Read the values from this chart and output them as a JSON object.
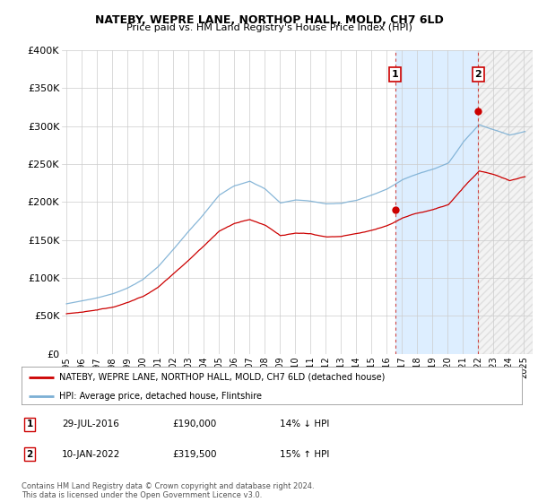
{
  "title": "NATEBY, WEPRE LANE, NORTHOP HALL, MOLD, CH7 6LD",
  "subtitle": "Price paid vs. HM Land Registry's House Price Index (HPI)",
  "legend_line1": "NATEBY, WEPRE LANE, NORTHOP HALL, MOLD, CH7 6LD (detached house)",
  "legend_line2": "HPI: Average price, detached house, Flintshire",
  "marker1_date": "29-JUL-2016",
  "marker1_price": 190000,
  "marker1_label": "14% ↓ HPI",
  "marker1_year": 2016.58,
  "marker2_date": "10-JAN-2022",
  "marker2_price": 319500,
  "marker2_label": "15% ↑ HPI",
  "marker2_year": 2022.03,
  "footer": "Contains HM Land Registry data © Crown copyright and database right 2024.\nThis data is licensed under the Open Government Licence v3.0.",
  "ylim": [
    0,
    400000
  ],
  "yticks": [
    0,
    50000,
    100000,
    150000,
    200000,
    250000,
    300000,
    350000,
    400000
  ],
  "line_color_red": "#cc0000",
  "line_color_blue": "#7bafd4",
  "background_plot": "#ffffff",
  "background_fig": "#ffffff",
  "grid_color": "#cccccc",
  "shade_color": "#ddeeff",
  "marker_color_red": "#cc0000",
  "marker_box_color": "#cc0000",
  "xtick_years": [
    "1995",
    "1996",
    "1997",
    "1998",
    "1999",
    "2000",
    "2001",
    "2002",
    "2003",
    "2004",
    "2005",
    "2006",
    "2007",
    "2008",
    "2009",
    "2010",
    "2011",
    "2012",
    "2013",
    "2014",
    "2015",
    "2016",
    "2017",
    "2018",
    "2019",
    "2020",
    "2021",
    "2022",
    "2023",
    "2024",
    "2025"
  ]
}
